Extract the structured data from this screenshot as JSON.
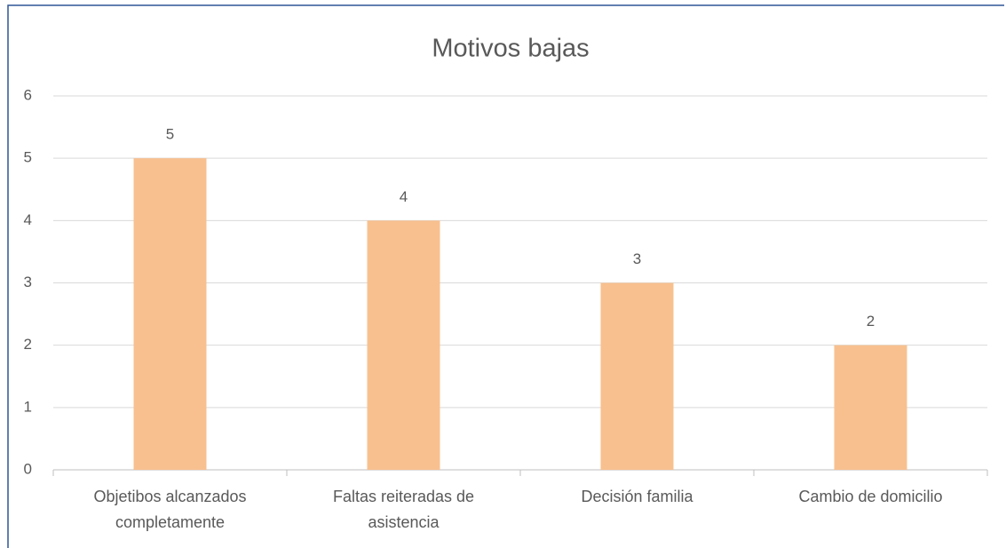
{
  "chart_data": {
    "type": "bar",
    "title": "Motivos bajas",
    "categories": [
      "Objetibos alcanzados completamente",
      "Faltas reiteradas de asistencia",
      "Decisión familia",
      "Cambio de domicilio"
    ],
    "values": [
      5,
      4,
      3,
      2
    ],
    "color": "#f8c08f",
    "ylim": [
      0,
      6
    ],
    "yticks": [
      0,
      1,
      2,
      3,
      4,
      5,
      6
    ],
    "grid": true
  }
}
